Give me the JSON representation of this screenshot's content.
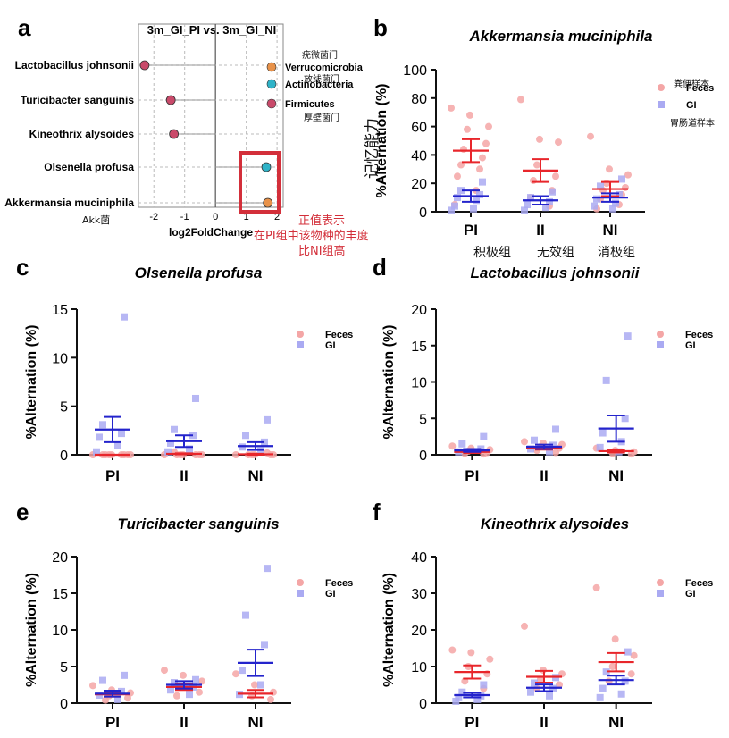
{
  "chart_data": [
    {
      "panel": "a",
      "type": "scatter",
      "title": "3m_GI_PI vs. 3m_GI_NI",
      "xlabel": "log2FoldChange",
      "xlim": [
        -2.5,
        2.2
      ],
      "xticks": [
        -2,
        -1,
        0,
        1,
        2
      ],
      "categories": [
        "Lactobacillus johnsonii",
        "Turicibacter sanguinis",
        "Kineothrix alysoides",
        "Olsenella profusa",
        "Akkermansia muciniphila"
      ],
      "points": [
        {
          "taxon": "Lactobacillus johnsonii",
          "x": -2.3,
          "phylum": "Firmicutes"
        },
        {
          "taxon": "Turicibacter sanguinis",
          "x": -1.45,
          "phylum": "Firmicutes"
        },
        {
          "taxon": "Kineothrix alysoides",
          "x": -1.35,
          "phylum": "Firmicutes"
        },
        {
          "taxon": "Olsenella profusa",
          "x": 1.65,
          "phylum": "Actinobacteria"
        },
        {
          "taxon": "Akkermansia muciniphila",
          "x": 1.7,
          "phylum": "Verrucomicrobia"
        }
      ],
      "legend": [
        {
          "label": "Verrucomicrobia",
          "color": "#e8924a"
        },
        {
          "label": "Actinobacteria",
          "color": "#2fb3c8"
        },
        {
          "label": "Firmicutes",
          "color": "#c94a6a"
        }
      ]
    },
    {
      "panel": "b",
      "type": "scatter",
      "title": "Akkermansia muciniphila",
      "ylabel": "%Alternation (%)",
      "ylim": [
        0,
        100
      ],
      "yticks": [
        0,
        20,
        40,
        60,
        80,
        100
      ],
      "categories": [
        "PI",
        "II",
        "NI"
      ],
      "series": [
        {
          "name": "Feces",
          "color": "#f4a6a6",
          "mean": [
            43,
            29,
            16
          ],
          "sem": [
            8,
            8,
            5
          ],
          "values": [
            [
              73,
              68,
              60,
              58,
              48,
              44,
              38,
              33,
              30,
              25,
              15,
              5
            ],
            [
              79,
              51,
              49,
              33,
              25,
              22,
              15,
              10,
              4
            ],
            [
              53,
              30,
              26,
              20,
              17,
              15,
              12,
              9,
              5,
              2
            ]
          ]
        },
        {
          "name": "GI",
          "color": "#aaaaf2",
          "mean": [
            11,
            8,
            10
          ],
          "sem": [
            4,
            3,
            3
          ],
          "values": [
            [
              21,
              15,
              12,
              10,
              8,
              4,
              2,
              1
            ],
            [
              14,
              10,
              7,
              5,
              3,
              1
            ],
            [
              23,
              18,
              12,
              9,
              6,
              4,
              2
            ]
          ]
        }
      ],
      "legend": [
        {
          "label": "Feces"
        },
        {
          "label": "GI"
        }
      ]
    },
    {
      "panel": "c",
      "type": "scatter",
      "title": "Olsenella profusa",
      "ylabel": "%Alternation (%)",
      "ylim": [
        0,
        15
      ],
      "yticks": [
        0,
        5,
        10,
        15
      ],
      "categories": [
        "PI",
        "II",
        "NI"
      ],
      "series": [
        {
          "name": "Feces",
          "color": "#f4a6a6",
          "mean": [
            0,
            0.1,
            0.05
          ],
          "sem": [
            0,
            0.05,
            0.05
          ],
          "values": [
            [
              0,
              0,
              0,
              0,
              0,
              0,
              0,
              0,
              0
            ],
            [
              0,
              0,
              0,
              0,
              0,
              0,
              0,
              0.3
            ],
            [
              0,
              0,
              0,
              0,
              0,
              0,
              0.2
            ]
          ]
        },
        {
          "name": "GI",
          "color": "#aaaaf2",
          "mean": [
            2.6,
            1.4,
            0.9
          ],
          "sem": [
            1.3,
            0.6,
            0.4
          ],
          "values": [
            [
              14.2,
              3.1,
              2.2,
              1.8,
              1.0,
              0.3
            ],
            [
              5.8,
              2.6,
              2.0,
              1.2,
              0.6,
              0.3
            ],
            [
              3.6,
              2.0,
              1.3,
              0.8,
              0.4
            ]
          ]
        }
      ],
      "legend": [
        {
          "label": "Feces"
        },
        {
          "label": "GI"
        }
      ]
    },
    {
      "panel": "d",
      "type": "scatter",
      "title": "Lactobacillus johnsonii",
      "ylabel": "%Alternation (%)",
      "ylim": [
        0,
        20
      ],
      "yticks": [
        0,
        5,
        10,
        15,
        20
      ],
      "categories": [
        "PI",
        "II",
        "NI"
      ],
      "series": [
        {
          "name": "Feces",
          "color": "#f4a6a6",
          "mean": [
            0.4,
            0.9,
            0.5
          ],
          "sem": [
            0.15,
            0.2,
            0.2
          ],
          "values": [
            [
              1.2,
              0.9,
              0.7,
              0.5,
              0.3,
              0.2,
              0.1
            ],
            [
              1.8,
              1.6,
              1.4,
              1.1,
              0.9,
              0.6,
              0.3
            ],
            [
              0.9,
              0.6,
              0.4,
              0.2,
              0.1
            ]
          ]
        },
        {
          "name": "GI",
          "color": "#aaaaf2",
          "mean": [
            0.6,
            1.1,
            3.6
          ],
          "sem": [
            0.2,
            0.3,
            1.8
          ],
          "values": [
            [
              2.5,
              1.5,
              0.8,
              0.4
            ],
            [
              3.5,
              2.0,
              1.3,
              0.8,
              0.4
            ],
            [
              16.3,
              10.2,
              5.0,
              3.0,
              1.8,
              1.0,
              0.4
            ]
          ]
        }
      ],
      "legend": [
        {
          "label": "Feces"
        },
        {
          "label": "GI"
        }
      ]
    },
    {
      "panel": "e",
      "type": "scatter",
      "title": "Turicibacter sanguinis",
      "ylabel": "%Alternation (%)",
      "ylim": [
        0,
        20
      ],
      "yticks": [
        0,
        5,
        10,
        15,
        20
      ],
      "categories": [
        "PI",
        "II",
        "NI"
      ],
      "series": [
        {
          "name": "Feces",
          "color": "#f4a6a6",
          "mean": [
            1.2,
            2.2,
            1.3
          ],
          "sem": [
            0.3,
            0.4,
            0.5
          ],
          "values": [
            [
              2.4,
              1.8,
              1.4,
              1.0,
              0.7,
              0.4
            ],
            [
              4.5,
              3.8,
              3.0,
              2.2,
              1.5,
              1.0
            ],
            [
              4.0,
              2.5,
              1.5,
              1.0,
              0.5
            ]
          ]
        },
        {
          "name": "GI",
          "color": "#aaaaf2",
          "mean": [
            1.3,
            2.5,
            5.5
          ],
          "sem": [
            0.4,
            0.5,
            1.8
          ],
          "values": [
            [
              3.8,
              3.1,
              1.6,
              1.1,
              0.5
            ],
            [
              3.2,
              2.8,
              2.2,
              1.8,
              1.2
            ],
            [
              18.4,
              12.0,
              8.0,
              4.5,
              2.5,
              1.2
            ]
          ]
        }
      ],
      "legend": [
        {
          "label": "Feces"
        },
        {
          "label": "GI"
        }
      ]
    },
    {
      "panel": "f",
      "type": "scatter",
      "title": "Kineothrix alysoides",
      "ylabel": "%Alternation (%)",
      "ylim": [
        0,
        40
      ],
      "yticks": [
        0,
        10,
        20,
        30,
        40
      ],
      "categories": [
        "PI",
        "II",
        "NI"
      ],
      "series": [
        {
          "name": "Feces",
          "color": "#f4a6a6",
          "mean": [
            8.5,
            7.2,
            11.2
          ],
          "sem": [
            1.8,
            1.6,
            2.5
          ],
          "values": [
            [
              14.5,
              13.8,
              12.0,
              10.0,
              8.0,
              6.0,
              4.0
            ],
            [
              21.0,
              9.0,
              8.0,
              6.5,
              5.0,
              4.0
            ],
            [
              31.5,
              17.5,
              13.0,
              10.0,
              8.0,
              6.0
            ]
          ]
        },
        {
          "name": "GI",
          "color": "#aaaaf2",
          "mean": [
            2.2,
            4.2,
            6.3
          ],
          "sem": [
            0.6,
            0.9,
            1.2
          ],
          "values": [
            [
              5.0,
              3.0,
              2.0,
              1.5,
              1.0,
              0.5
            ],
            [
              7.0,
              5.5,
              4.0,
              3.0,
              2.0
            ],
            [
              14.0,
              8.5,
              6.0,
              4.0,
              2.5,
              1.5
            ]
          ]
        }
      ],
      "legend": [
        {
          "label": "Feces"
        },
        {
          "label": "GI"
        }
      ]
    }
  ],
  "panel_letters": [
    "a",
    "b",
    "c",
    "d",
    "e",
    "f"
  ],
  "annotations": {
    "verrucomicrobia_cn": "疣微菌门",
    "actinobacteria_cn": "放线菌门",
    "firmicutes_cn": "厚壁菌门",
    "akk_cn": "Akk菌",
    "positive_note_1": "正值表示",
    "positive_note_2": "在PI组中该物种的丰度",
    "positive_note_3": "比NI组高",
    "feces_cn": "粪便样本",
    "gi_cn": "胃肠道样本",
    "memory_cn": "记忆能力",
    "pi_cn": "积极组",
    "ii_cn": "无效组",
    "ni_cn": "消极组"
  },
  "colors": {
    "highlight": "#d32f3a",
    "feces_mean": "#e8262b",
    "gi_mean": "#2424cc"
  }
}
